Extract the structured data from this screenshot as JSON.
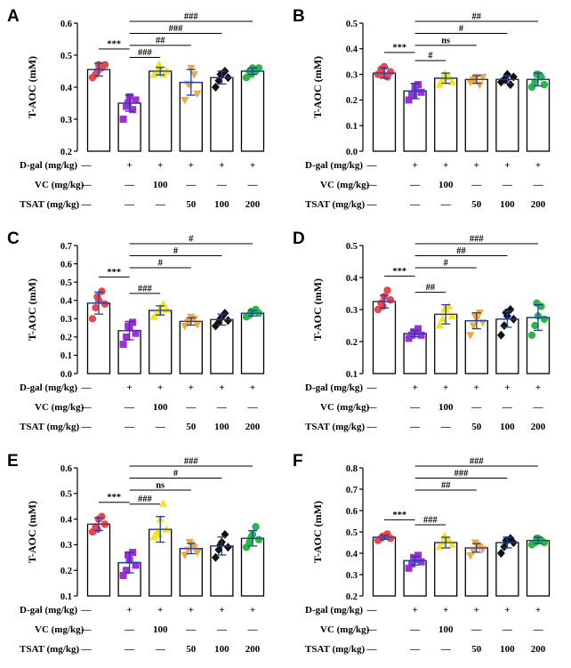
{
  "colors": [
    "#e8474f",
    "#9b30d9",
    "#f5e31a",
    "#f0a843",
    "#111111",
    "#2bb54b"
  ],
  "chart_data": [
    {
      "type": "bar",
      "panel": "A",
      "ylabel": "T-AOC (mM)",
      "ylim": [
        0.2,
        0.6
      ],
      "yticks": [
        "0.2",
        "0.3",
        "0.4",
        "0.5",
        "0.6"
      ],
      "values": [
        0.455,
        0.35,
        0.45,
        0.415,
        0.43,
        0.45
      ],
      "errors": [
        0.02,
        0.025,
        0.012,
        0.04,
        0.02,
        0.01
      ],
      "points": [
        [
          0.43,
          0.44,
          0.47,
          0.46,
          0.47,
          0.45
        ],
        [
          0.3,
          0.34,
          0.37,
          0.33,
          0.36,
          0.35
        ],
        [
          0.44,
          0.45,
          0.46,
          0.44,
          0.45,
          0.47
        ],
        [
          0.36,
          0.41,
          0.46,
          0.44,
          0.38,
          0.41
        ],
        [
          0.4,
          0.42,
          0.44,
          0.45,
          0.43,
          0.44
        ],
        [
          0.43,
          0.45,
          0.46,
          0.45,
          0.46,
          0.44
        ]
      ],
      "comparisons": [
        {
          "from": 0,
          "to": 1,
          "label": "***"
        },
        {
          "from": 1,
          "to": 2,
          "label": "###"
        },
        {
          "from": 1,
          "to": 3,
          "label": "##"
        },
        {
          "from": 1,
          "to": 4,
          "label": "###"
        },
        {
          "from": 1,
          "to": 5,
          "label": "###"
        }
      ]
    },
    {
      "type": "bar",
      "panel": "B",
      "ylabel": "T-AOC (mM)",
      "ylim": [
        0.0,
        0.5
      ],
      "yticks": [
        "0.0",
        "0.1",
        "0.2",
        "0.3",
        "0.4",
        "0.5"
      ],
      "values": [
        0.305,
        0.235,
        0.285,
        0.28,
        0.28,
        0.28
      ],
      "errors": [
        0.02,
        0.03,
        0.02,
        0.015,
        0.015,
        0.025
      ],
      "points": [
        [
          0.3,
          0.32,
          0.33,
          0.29,
          0.31,
          0.3
        ],
        [
          0.2,
          0.22,
          0.25,
          0.26,
          0.23,
          0.22
        ],
        [
          0.26,
          0.28,
          0.3,
          0.29,
          0.27,
          0.3
        ],
        [
          0.27,
          0.28,
          0.29,
          0.26,
          0.29,
          0.28
        ],
        [
          0.27,
          0.28,
          0.3,
          0.26,
          0.29,
          0.28
        ],
        [
          0.25,
          0.27,
          0.3,
          0.29,
          0.26,
          0.3
        ]
      ],
      "comparisons": [
        {
          "from": 0,
          "to": 1,
          "label": "***"
        },
        {
          "from": 1,
          "to": 2,
          "label": "#"
        },
        {
          "from": 1,
          "to": 3,
          "label": "ns"
        },
        {
          "from": 1,
          "to": 4,
          "label": "#"
        },
        {
          "from": 1,
          "to": 5,
          "label": "##"
        }
      ]
    },
    {
      "type": "bar",
      "panel": "C",
      "ylabel": "T-AOC (mM)",
      "ylim": [
        0.0,
        0.7
      ],
      "yticks": [
        "0.0",
        "0.1",
        "0.2",
        "0.3",
        "0.4",
        "0.5",
        "0.6",
        "0.7"
      ],
      "values": [
        0.385,
        0.235,
        0.345,
        0.285,
        0.295,
        0.33
      ],
      "errors": [
        0.06,
        0.05,
        0.025,
        0.02,
        0.03,
        0.015
      ],
      "points": [
        [
          0.3,
          0.36,
          0.4,
          0.45,
          0.38,
          0.42
        ],
        [
          0.16,
          0.2,
          0.25,
          0.28,
          0.22,
          0.26
        ],
        [
          0.31,
          0.33,
          0.36,
          0.38,
          0.35,
          0.34
        ],
        [
          0.26,
          0.28,
          0.31,
          0.3,
          0.27,
          0.29
        ],
        [
          0.26,
          0.28,
          0.31,
          0.33,
          0.29,
          0.3
        ],
        [
          0.31,
          0.32,
          0.34,
          0.35,
          0.33,
          0.34
        ]
      ],
      "comparisons": [
        {
          "from": 0,
          "to": 1,
          "label": "***"
        },
        {
          "from": 1,
          "to": 2,
          "label": "###"
        },
        {
          "from": 1,
          "to": 3,
          "label": "#"
        },
        {
          "from": 1,
          "to": 4,
          "label": "#"
        },
        {
          "from": 1,
          "to": 5,
          "label": "#"
        }
      ]
    },
    {
      "type": "bar",
      "panel": "D",
      "ylabel": "T-AOC (mM)",
      "ylim": [
        0.1,
        0.5
      ],
      "yticks": [
        "0.1",
        "0.2",
        "0.3",
        "0.4",
        "0.5"
      ],
      "values": [
        0.325,
        0.225,
        0.285,
        0.265,
        0.27,
        0.275
      ],
      "errors": [
        0.02,
        0.01,
        0.03,
        0.025,
        0.025,
        0.04
      ],
      "points": [
        [
          0.3,
          0.32,
          0.34,
          0.36,
          0.33,
          0.31
        ],
        [
          0.21,
          0.22,
          0.23,
          0.24,
          0.22,
          0.23
        ],
        [
          0.25,
          0.27,
          0.3,
          0.31,
          0.28,
          0.3
        ],
        [
          0.22,
          0.25,
          0.27,
          0.29,
          0.26,
          0.28
        ],
        [
          0.22,
          0.25,
          0.28,
          0.3,
          0.27,
          0.29
        ],
        [
          0.22,
          0.25,
          0.28,
          0.31,
          0.27,
          0.32
        ]
      ],
      "comparisons": [
        {
          "from": 0,
          "to": 1,
          "label": "***"
        },
        {
          "from": 1,
          "to": 2,
          "label": "##"
        },
        {
          "from": 1,
          "to": 3,
          "label": "#"
        },
        {
          "from": 1,
          "to": 4,
          "label": "##"
        },
        {
          "from": 1,
          "to": 5,
          "label": "###"
        }
      ]
    },
    {
      "type": "bar",
      "panel": "E",
      "ylabel": "T-AOC (mM)",
      "ylim": [
        0.1,
        0.6
      ],
      "yticks": [
        "0.1",
        "0.2",
        "0.3",
        "0.4",
        "0.5",
        "0.6"
      ],
      "values": [
        0.38,
        0.23,
        0.36,
        0.285,
        0.295,
        0.325
      ],
      "errors": [
        0.025,
        0.04,
        0.05,
        0.02,
        0.035,
        0.03
      ],
      "points": [
        [
          0.35,
          0.37,
          0.4,
          0.41,
          0.38,
          0.36
        ],
        [
          0.18,
          0.2,
          0.24,
          0.27,
          0.22,
          0.26
        ],
        [
          0.33,
          0.35,
          0.4,
          0.46,
          0.36,
          0.34
        ],
        [
          0.26,
          0.28,
          0.3,
          0.29,
          0.27,
          0.31
        ],
        [
          0.25,
          0.28,
          0.31,
          0.34,
          0.29,
          0.3
        ],
        [
          0.29,
          0.31,
          0.34,
          0.37,
          0.32,
          0.33
        ]
      ],
      "comparisons": [
        {
          "from": 0,
          "to": 1,
          "label": "***"
        },
        {
          "from": 1,
          "to": 2,
          "label": "###"
        },
        {
          "from": 1,
          "to": 3,
          "label": "ns"
        },
        {
          "from": 1,
          "to": 4,
          "label": "#"
        },
        {
          "from": 1,
          "to": 5,
          "label": "###"
        }
      ]
    },
    {
      "type": "bar",
      "panel": "F",
      "ylabel": "T-AOC (mM)",
      "ylim": [
        0.2,
        0.8
      ],
      "yticks": [
        "0.2",
        "0.3",
        "0.4",
        "0.5",
        "0.6",
        "0.7",
        "0.8"
      ],
      "values": [
        0.475,
        0.365,
        0.45,
        0.425,
        0.45,
        0.46
      ],
      "errors": [
        0.01,
        0.02,
        0.025,
        0.02,
        0.025,
        0.015
      ],
      "points": [
        [
          0.46,
          0.47,
          0.48,
          0.49,
          0.47,
          0.48
        ],
        [
          0.33,
          0.35,
          0.37,
          0.39,
          0.36,
          0.38
        ],
        [
          0.43,
          0.45,
          0.47,
          0.46,
          0.44,
          0.48
        ],
        [
          0.39,
          0.41,
          0.44,
          0.43,
          0.42,
          0.45
        ],
        [
          0.4,
          0.43,
          0.46,
          0.47,
          0.45,
          0.46
        ],
        [
          0.44,
          0.45,
          0.47,
          0.46,
          0.45,
          0.47
        ]
      ],
      "comparisons": [
        {
          "from": 0,
          "to": 1,
          "label": "***"
        },
        {
          "from": 1,
          "to": 2,
          "label": "###"
        },
        {
          "from": 1,
          "to": 3,
          "label": "##"
        },
        {
          "from": 1,
          "to": 4,
          "label": "###"
        },
        {
          "from": 1,
          "to": 5,
          "label": "###"
        }
      ]
    }
  ],
  "treatment_table": {
    "rows": [
      {
        "label": "D-gal (mg/kg)",
        "cells": [
          "—",
          "+",
          "+",
          "+",
          "+",
          "+"
        ]
      },
      {
        "label": "VC (mg/kg)",
        "cells": [
          "—",
          "—",
          "100",
          "—",
          "—",
          "—"
        ]
      },
      {
        "label": "TSAT (mg/kg)",
        "cells": [
          "—",
          "—",
          "—",
          "50",
          "100",
          "200"
        ]
      }
    ]
  }
}
